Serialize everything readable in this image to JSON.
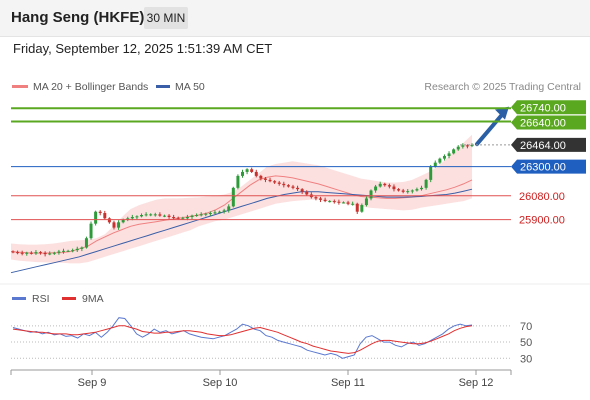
{
  "header": {
    "title": "Hang Seng (HKFE)",
    "interval": "30 MIN",
    "datetime": "Friday, September 12, 2025 1:51:39 AM CET"
  },
  "colors": {
    "candle_up": "#2e9b3a",
    "candle_down": "#c8322e",
    "bollinger_fill": "#fbd6d6",
    "ma20": "#f08080",
    "ma50": "#3a5fa8",
    "resistance": "#5aa820",
    "support": "#e05050",
    "pivot": "#1f5fc0",
    "last_price": "#333333",
    "rsi": "#5a78d0",
    "rsi_ma": "#e03030",
    "arrow": "#2a5fa5"
  },
  "legend": {
    "ma20": "MA 20 + Bollinger Bands",
    "ma50": "MA 50",
    "credit": "Research © 2025 Trading Central"
  },
  "rsi_legend": {
    "rsi": "RSI",
    "ma": "9MA"
  },
  "chart_data": {
    "type": "candlestick",
    "y_range": [
      25430,
      26840
    ],
    "levels": [
      {
        "value": 26740,
        "label": "26740.00",
        "kind": "resistance"
      },
      {
        "value": 26640,
        "label": "26640.00",
        "kind": "resistance"
      },
      {
        "value": 26464,
        "label": "26464.00",
        "kind": "last"
      },
      {
        "value": 26300,
        "label": "26300.00",
        "kind": "pivot"
      },
      {
        "value": 26080,
        "label": "26080.00",
        "kind": "support"
      },
      {
        "value": 25900,
        "label": "25900.00",
        "kind": "support"
      }
    ],
    "x_ticks": [
      "Sep 9",
      "Sep 10",
      "Sep 11",
      "Sep 12"
    ],
    "closes": [
      25655,
      25650,
      25645,
      25650,
      25645,
      25655,
      25650,
      25640,
      25645,
      25650,
      25660,
      25665,
      25665,
      25670,
      25680,
      25690,
      25760,
      25870,
      25960,
      25950,
      25910,
      25880,
      25840,
      25880,
      25900,
      25910,
      25920,
      25925,
      25935,
      25940,
      25940,
      25940,
      25930,
      25930,
      25920,
      25915,
      25910,
      25910,
      25920,
      25930,
      25935,
      25940,
      25945,
      25950,
      25955,
      25960,
      25970,
      26000,
      26140,
      26230,
      26260,
      26280,
      26260,
      26230,
      26210,
      26200,
      26190,
      26180,
      26170,
      26160,
      26150,
      26140,
      26130,
      26110,
      26090,
      26070,
      26060,
      26050,
      26040,
      26040,
      26035,
      26030,
      26030,
      26020,
      26020,
      25960,
      26010,
      26060,
      26120,
      26150,
      26170,
      26160,
      26150,
      26130,
      26120,
      26110,
      26115,
      26120,
      26130,
      26140,
      26200,
      26300,
      26330,
      26360,
      26380,
      26400,
      26430,
      26450,
      26460,
      26455,
      26464
    ],
    "bollinger_upper": [
      25720,
      25715,
      25712,
      25712,
      25715,
      25720,
      25730,
      25740,
      25745,
      25748,
      25760,
      25790,
      25850,
      25920,
      25980,
      26010,
      26030,
      26050,
      26060,
      26060,
      26062,
      26065,
      26068,
      26075,
      26080,
      26090,
      26110,
      26150,
      26200,
      26250,
      26300,
      26320,
      26330,
      26340,
      26330,
      26320,
      26310,
      26290,
      26270,
      26250,
      26230,
      26210,
      26200,
      26190,
      26180,
      26180,
      26185,
      26200,
      26230,
      26260,
      26300,
      26360,
      26420,
      26480,
      26540
    ],
    "bollinger_lower": [
      25600,
      25590,
      25585,
      25580,
      25578,
      25575,
      25575,
      25570,
      25570,
      25580,
      25600,
      25620,
      25640,
      25660,
      25680,
      25700,
      25720,
      25740,
      25760,
      25780,
      25800,
      25820,
      25850,
      25870,
      25890,
      25900,
      25920,
      25940,
      25960,
      25980,
      26000,
      26020,
      26030,
      26040,
      26045,
      26050,
      26050,
      26040,
      26030,
      26020,
      26010,
      26000,
      25990,
      25985,
      25980,
      25975,
      25970,
      25975,
      25990,
      26000,
      26010,
      26020,
      26030,
      26040,
      26060
    ],
    "ma20": [
      25660,
      25655,
      25650,
      25648,
      25648,
      25650,
      25652,
      25660,
      25680,
      25700,
      25740,
      25770,
      25800,
      25825,
      25850,
      25865,
      25875,
      25885,
      25895,
      25905,
      25915,
      25925,
      25935,
      25950,
      25975,
      26010,
      26060,
      26110,
      26160,
      26200,
      26220,
      26230,
      26225,
      26215,
      26200,
      26185,
      26170,
      26150,
      26130,
      26110,
      26090,
      26075,
      26070,
      26065,
      26060,
      26060,
      26065,
      26070,
      26080,
      26095,
      26110,
      26125,
      26145,
      26170,
      26200
    ],
    "ma50": [
      25500,
      25515,
      25530,
      25545,
      25560,
      25575,
      25590,
      25605,
      25620,
      25640,
      25660,
      25680,
      25700,
      25720,
      25740,
      25760,
      25780,
      25800,
      25820,
      25840,
      25860,
      25880,
      25900,
      25920,
      25940,
      25960,
      25980,
      26000,
      26020,
      26040,
      26060,
      26075,
      26090,
      26100,
      26110,
      26110,
      26110,
      26105,
      26100,
      26095,
      26090,
      26085,
      26080,
      26075,
      26070,
      26070,
      26070,
      26072,
      26075,
      26080,
      26085,
      26090,
      26100,
      26115,
      26130
    ],
    "rsi_ticks": [
      70,
      50,
      30
    ],
    "rsi_range": [
      18,
      92
    ],
    "rsi": [
      68,
      66,
      64,
      62,
      63,
      60,
      62,
      59,
      60,
      57,
      58,
      55,
      60,
      58,
      62,
      56,
      62,
      70,
      80,
      79,
      70,
      60,
      56,
      60,
      66,
      62,
      64,
      60,
      62,
      64,
      60,
      58,
      56,
      55,
      54,
      56,
      58,
      62,
      66,
      72,
      70,
      66,
      64,
      58,
      56,
      52,
      50,
      48,
      46,
      44,
      40,
      38,
      36,
      34,
      36,
      34,
      30,
      32,
      34,
      48,
      56,
      58,
      54,
      50,
      50,
      46,
      44,
      48,
      50,
      46,
      48,
      52,
      56,
      60,
      66,
      70,
      72,
      70,
      71
    ],
    "rsi_ma": [
      66,
      65,
      64,
      63,
      62,
      62,
      61,
      60,
      60,
      60,
      59,
      59,
      60,
      61,
      62,
      64,
      66,
      68,
      70,
      70,
      68,
      66,
      63,
      62,
      61,
      61,
      62,
      62,
      63,
      64,
      64,
      63,
      62,
      60,
      59,
      58,
      58,
      59,
      61,
      63,
      65,
      67,
      68,
      66,
      64,
      62,
      59,
      56,
      53,
      50,
      48,
      45,
      43,
      41,
      39,
      38,
      37,
      36,
      37,
      40,
      44,
      48,
      51,
      52,
      52,
      51,
      50,
      49,
      48,
      48,
      49,
      51,
      54,
      57,
      60,
      64,
      67,
      69,
      70
    ]
  }
}
